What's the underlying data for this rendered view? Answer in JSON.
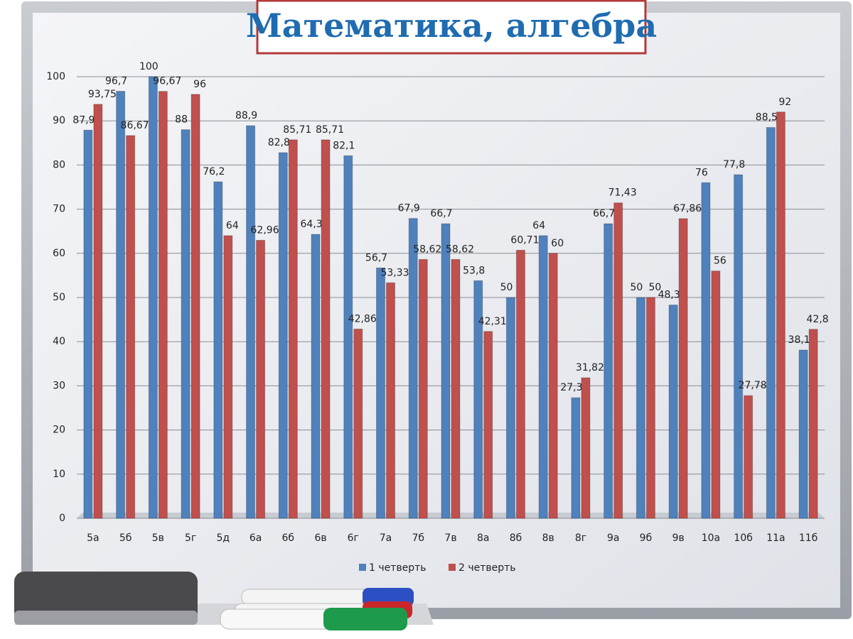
{
  "chart_data": {
    "type": "bar",
    "title": "Математика, алгебра",
    "categories": [
      "5а",
      "5б",
      "5в",
      "5г",
      "5д",
      "6а",
      "6б",
      "6в",
      "6г",
      "7а",
      "7б",
      "7в",
      "8а",
      "8б",
      "8в",
      "8г",
      "9а",
      "9б",
      "9в",
      "10а",
      "10б",
      "11а",
      "11б"
    ],
    "series": [
      {
        "name": "1 четверть",
        "color": "#4f81bd",
        "values": [
          87.9,
          96.7,
          100,
          88,
          76.2,
          88.9,
          82.8,
          64.3,
          82.1,
          56.7,
          67.9,
          66.7,
          53.8,
          50,
          64,
          27.3,
          66.7,
          50,
          48.3,
          76,
          77.8,
          88.5,
          38.1
        ],
        "value_labels": [
          "87,9",
          "96,7",
          "100",
          "88",
          "76,2",
          "88,9",
          "82,8",
          "64,3",
          "82,1",
          "56,7",
          "67,9",
          "66,7",
          "53,8",
          "50",
          "64",
          "27,3",
          "66,7",
          "50",
          "48,3",
          "76",
          "77,8",
          "88,5",
          "38,1"
        ]
      },
      {
        "name": "2 четверть",
        "color": "#c0504d",
        "values": [
          93.75,
          86.67,
          96.67,
          96,
          64,
          62.96,
          85.71,
          85.71,
          42.86,
          53.33,
          58.62,
          58.62,
          42.31,
          60.71,
          60,
          31.82,
          71.43,
          50,
          67.86,
          56,
          27.78,
          92,
          42.8
        ],
        "value_labels": [
          "93,75",
          "86,67",
          "96,67",
          "96",
          "64",
          "62,96",
          "85,71",
          "85,71",
          "42,86",
          "53,33",
          "58,62",
          "58,62",
          "42,31",
          "60,71",
          "60",
          "31,82",
          "71,43",
          "50",
          "67,86",
          "56",
          "27,78",
          "92",
          "42,8"
        ]
      }
    ],
    "ylim": [
      0,
      100
    ],
    "yticks": [
      0,
      10,
      20,
      30,
      40,
      50,
      60,
      70,
      80,
      90,
      100
    ],
    "grid": true,
    "legend": "bottom"
  }
}
